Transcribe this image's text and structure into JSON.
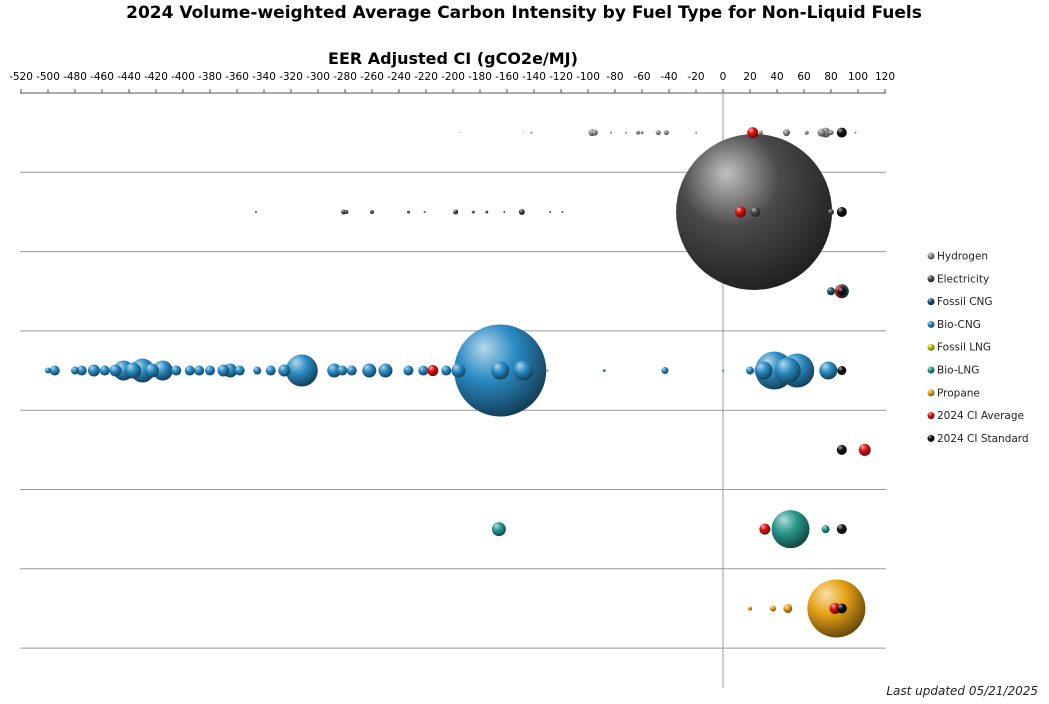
{
  "chart_data": {
    "type": "bubble",
    "title": "2024 Volume-weighted Average Carbon Intensity by Fuel Type for Non-Liquid Fuels",
    "xlabel": "EER Adjusted CI (gCO2e/MJ)",
    "xlim": [
      -520,
      120
    ],
    "x_ticks": [
      -520,
      -500,
      -480,
      -460,
      -440,
      -420,
      -400,
      -380,
      -360,
      -340,
      -320,
      -300,
      -280,
      -260,
      -240,
      -220,
      -200,
      -180,
      -160,
      -140,
      -120,
      -100,
      -80,
      -60,
      -40,
      -20,
      0,
      20,
      40,
      60,
      80,
      100,
      120
    ],
    "legend_position": "right",
    "footnote": "Last updated 05/21/2025",
    "rows": [
      "Hydrogen",
      "Electricity",
      "Fossil CNG",
      "Bio-CNG",
      "Fossil LNG",
      "Bio-LNG",
      "Propane"
    ],
    "series": [
      {
        "name": "Hydrogen",
        "color": "#8f8f8f",
        "points": [
          {
            "x": -195,
            "r": 0.5
          },
          {
            "x": -148,
            "r": 0.5
          },
          {
            "x": -142,
            "r": 1
          },
          {
            "x": -97,
            "r": 3.5
          },
          {
            "x": -95,
            "r": 3
          },
          {
            "x": -83,
            "r": 1
          },
          {
            "x": -72,
            "r": 1
          },
          {
            "x": -63,
            "r": 2
          },
          {
            "x": -60,
            "r": 1.5
          },
          {
            "x": -48,
            "r": 2.5
          },
          {
            "x": -42,
            "r": 2.5
          },
          {
            "x": -20,
            "r": 1
          },
          {
            "x": 28,
            "r": 2
          },
          {
            "x": 47,
            "r": 3.5
          },
          {
            "x": 62,
            "r": 2
          },
          {
            "x": 73,
            "r": 4
          },
          {
            "x": 76,
            "r": 5
          },
          {
            "x": 80,
            "r": 2.5
          },
          {
            "x": 98,
            "r": 1
          }
        ]
      },
      {
        "name": "Electricity",
        "color": "#4a4a4a",
        "points": [
          {
            "x": -346,
            "r": 1
          },
          {
            "x": -281,
            "r": 2.5
          },
          {
            "x": -279,
            "r": 2
          },
          {
            "x": -260,
            "r": 2
          },
          {
            "x": -233,
            "r": 1.5
          },
          {
            "x": -221,
            "r": 1
          },
          {
            "x": -198,
            "r": 2.5
          },
          {
            "x": -185,
            "r": 1.5
          },
          {
            "x": -175,
            "r": 1.5
          },
          {
            "x": -162,
            "r": 1
          },
          {
            "x": -149,
            "r": 3
          },
          {
            "x": -128,
            "r": 1
          },
          {
            "x": -119,
            "r": 1
          },
          {
            "x": 24,
            "r": 5
          },
          {
            "x": 80,
            "r": 3
          },
          {
            "x": 23,
            "r": 78
          }
        ]
      },
      {
        "name": "Fossil CNG",
        "color": "#1d4f69",
        "points": [
          {
            "x": 80,
            "r": 4
          },
          {
            "x": 88,
            "r": 7
          }
        ]
      },
      {
        "name": "Bio-CNG",
        "color": "#2b8cc4",
        "points": [
          {
            "x": -500,
            "r": 3
          },
          {
            "x": -495,
            "r": 5
          },
          {
            "x": -480,
            "r": 4
          },
          {
            "x": -475,
            "r": 5
          },
          {
            "x": -466,
            "r": 6
          },
          {
            "x": -458,
            "r": 5
          },
          {
            "x": -450,
            "r": 6
          },
          {
            "x": -444,
            "r": 10
          },
          {
            "x": -437,
            "r": 8
          },
          {
            "x": -430,
            "r": 12
          },
          {
            "x": -423,
            "r": 7
          },
          {
            "x": -415,
            "r": 10
          },
          {
            "x": -405,
            "r": 5
          },
          {
            "x": -395,
            "r": 5
          },
          {
            "x": -388,
            "r": 5
          },
          {
            "x": -380,
            "r": 5
          },
          {
            "x": -370,
            "r": 6
          },
          {
            "x": -365,
            "r": 7
          },
          {
            "x": -358,
            "r": 5
          },
          {
            "x": -345,
            "r": 4
          },
          {
            "x": -335,
            "r": 5
          },
          {
            "x": -325,
            "r": 6
          },
          {
            "x": -312,
            "r": 16
          },
          {
            "x": -288,
            "r": 7
          },
          {
            "x": -282,
            "r": 5
          },
          {
            "x": -275,
            "r": 5
          },
          {
            "x": -262,
            "r": 7
          },
          {
            "x": -250,
            "r": 7
          },
          {
            "x": -233,
            "r": 5
          },
          {
            "x": -222,
            "r": 5
          },
          {
            "x": -205,
            "r": 5
          },
          {
            "x": -196,
            "r": 7
          },
          {
            "x": -165,
            "r": 46
          },
          {
            "x": -165,
            "r": 9
          },
          {
            "x": -148,
            "r": 10
          },
          {
            "x": -130,
            "r": 1
          },
          {
            "x": -88,
            "r": 1.5
          },
          {
            "x": -43,
            "r": 3.5
          },
          {
            "x": 0,
            "r": 1
          },
          {
            "x": 20,
            "r": 4
          },
          {
            "x": 30,
            "r": 9
          },
          {
            "x": 38,
            "r": 19
          },
          {
            "x": 48,
            "r": 13
          },
          {
            "x": 55,
            "r": 17
          },
          {
            "x": 78,
            "r": 9
          }
        ]
      },
      {
        "name": "Fossil LNG",
        "color": "#c9c90a",
        "points": []
      },
      {
        "name": "Bio-LNG",
        "color": "#2a9a8f",
        "points": [
          {
            "x": -166,
            "r": 7
          },
          {
            "x": 50,
            "r": 19
          },
          {
            "x": 76,
            "r": 4
          }
        ]
      },
      {
        "name": "Propane",
        "color": "#e8a317",
        "points": [
          {
            "x": 20,
            "r": 2
          },
          {
            "x": 37,
            "r": 3
          },
          {
            "x": 48,
            "r": 4.5
          },
          {
            "x": 84,
            "r": 29
          }
        ]
      },
      {
        "name": "2024 CI Average",
        "color": "#e01010",
        "points": [
          {
            "x": 22,
            "row": 0,
            "r": 5.5
          },
          {
            "x": 13,
            "row": 1,
            "r": 5.5
          },
          {
            "x": 87,
            "row": 2,
            "r": 5.5
          },
          {
            "x": -215,
            "row": 3,
            "r": 5.5
          },
          {
            "x": 105,
            "row": 4,
            "r": 6
          },
          {
            "x": 31,
            "row": 5,
            "r": 5.5
          },
          {
            "x": 83,
            "row": 6,
            "r": 5.5
          }
        ]
      },
      {
        "name": "2024 CI Standard",
        "color": "#111111",
        "points": [
          {
            "x": 88,
            "row": 0,
            "r": 5
          },
          {
            "x": 88,
            "row": 1,
            "r": 5
          },
          {
            "x": 88,
            "row": 2,
            "r": 4.5
          },
          {
            "x": 88,
            "row": 3,
            "r": 4.5
          },
          {
            "x": 88,
            "row": 4,
            "r": 5
          },
          {
            "x": 88,
            "row": 5,
            "r": 5
          },
          {
            "x": 88,
            "row": 6,
            "r": 5
          }
        ]
      }
    ]
  }
}
